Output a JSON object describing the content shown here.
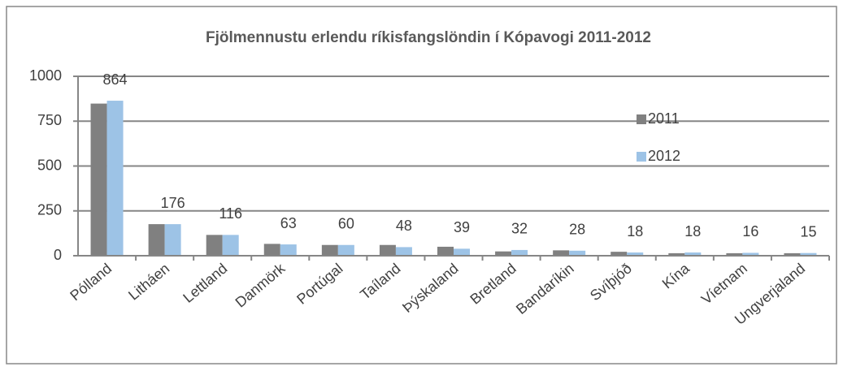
{
  "chart_data": {
    "type": "bar",
    "title": "Fjölmennustu erlendu ríkisfangslöndin  í Kópavogi  2011-2012",
    "categories": [
      "Pólland",
      "Litháen",
      "Lettland",
      "Danmörk",
      "Portúgal",
      "Taíland",
      "Þýskaland",
      "Bretland",
      "Bandaríkin",
      "Svíþjóð",
      "Kína",
      "Víetnam",
      "Ungverjaland"
    ],
    "series": [
      {
        "name": "2011",
        "color": "#808080",
        "values": [
          848,
          176,
          116,
          66,
          60,
          60,
          50,
          24,
          30,
          22,
          14,
          14,
          14
        ]
      },
      {
        "name": "2012",
        "color": "#9dc3e6",
        "values": [
          864,
          176,
          116,
          63,
          60,
          48,
          39,
          32,
          28,
          18,
          18,
          16,
          15
        ]
      }
    ],
    "data_labels_series": 1,
    "ylim": [
      0,
      1000
    ],
    "yticks": [
      0,
      250,
      500,
      750,
      1000
    ],
    "grid": true,
    "legend": "right"
  }
}
